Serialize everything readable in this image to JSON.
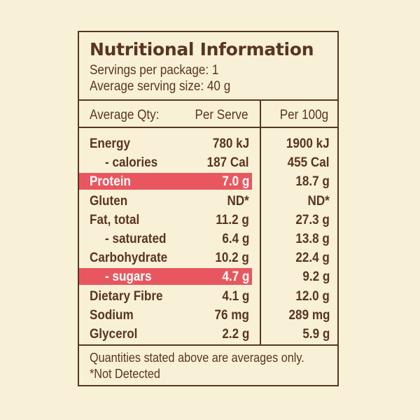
{
  "panel": {
    "title": "Nutritional Information",
    "servings_line": "Servings per package: 1",
    "serving_size_line": "Average serving size: 40 g"
  },
  "header": {
    "qty": "Average Qty:",
    "per_serve": "Per Serve",
    "per_100g": "Per 100g"
  },
  "rows": [
    {
      "label": "Energy",
      "per_serve": "780 kJ",
      "per_100g": "1900 kJ",
      "indent": false,
      "highlight": false
    },
    {
      "label": "- calories",
      "per_serve": "187 Cal",
      "per_100g": "455 Cal",
      "indent": true,
      "highlight": false
    },
    {
      "label": "Protein",
      "per_serve": "7.0 g",
      "per_100g": "18.7 g",
      "indent": false,
      "highlight": true
    },
    {
      "label": "Gluten",
      "per_serve": "ND*",
      "per_100g": "ND*",
      "indent": false,
      "highlight": false
    },
    {
      "label": "Fat, total",
      "per_serve": "11.2 g",
      "per_100g": "27.3 g",
      "indent": false,
      "highlight": false
    },
    {
      "label": "- saturated",
      "per_serve": "6.4 g",
      "per_100g": "13.8 g",
      "indent": true,
      "highlight": false
    },
    {
      "label": "Carbohydrate",
      "per_serve": "10.2 g",
      "per_100g": "22.4 g",
      "indent": false,
      "highlight": false
    },
    {
      "label": "- sugars",
      "per_serve": "4.7 g",
      "per_100g": "9.2 g",
      "indent": true,
      "highlight": true
    },
    {
      "label": "Dietary Fibre",
      "per_serve": "4.1 g",
      "per_100g": "12.0 g",
      "indent": false,
      "highlight": false
    },
    {
      "label": "Sodium",
      "per_serve": "76 mg",
      "per_100g": "289 mg",
      "indent": false,
      "highlight": false
    },
    {
      "label": "Glycerol",
      "per_serve": "2.2 g",
      "per_100g": "5.9 g",
      "indent": false,
      "highlight": false
    }
  ],
  "footer": {
    "note": "Quantities stated above are averages only.",
    "not_detected": "*Not Detected"
  },
  "colors": {
    "background": "#f8f1d8",
    "text": "#5a3520",
    "highlight": "#e8575f"
  }
}
